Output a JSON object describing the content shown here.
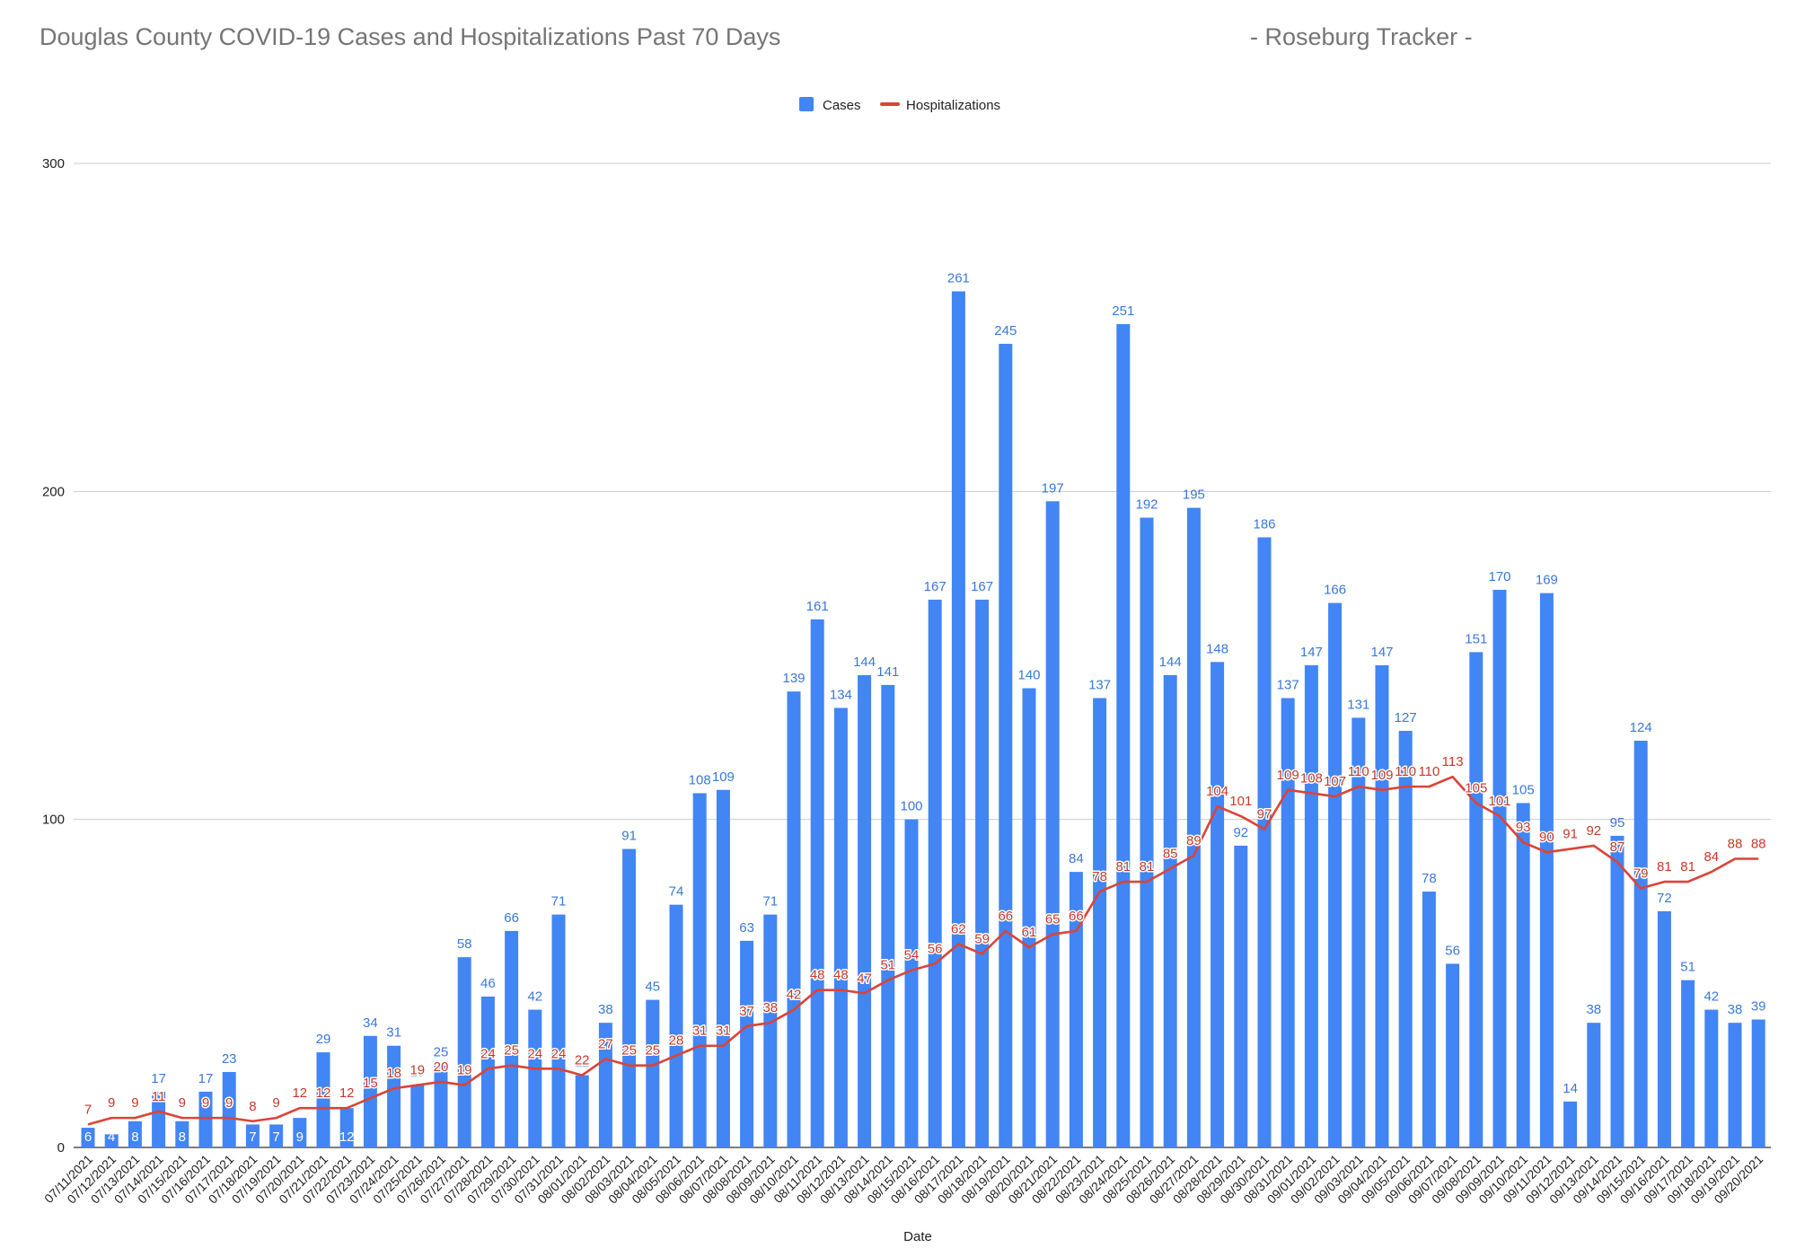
{
  "title": "Douglas County COVID-19 Cases and Hospitalizations Past 70 Days",
  "subtitle": "- Roseburg Tracker -",
  "chart_data": {
    "type": "bar",
    "title": "Douglas County COVID-19 Cases and Hospitalizations Past 70 Days",
    "subtitle": "- Roseburg Tracker -",
    "xlabel": "Date",
    "ylabel": "",
    "ylim": [
      0,
      300
    ],
    "yticks": [
      0,
      100,
      200,
      300
    ],
    "grid": true,
    "legend_position": "top-center",
    "categories": [
      "07/11/2021",
      "07/12/2021",
      "07/13/2021",
      "07/14/2021",
      "07/15/2021",
      "07/16/2021",
      "07/17/2021",
      "07/18/2021",
      "07/19/2021",
      "07/20/2021",
      "07/21/2021",
      "07/22/2021",
      "07/23/2021",
      "07/24/2021",
      "07/25/2021",
      "07/26/2021",
      "07/27/2021",
      "07/28/2021",
      "07/29/2021",
      "07/30/2021",
      "07/31/2021",
      "08/01/2021",
      "08/02/2021",
      "08/03/2021",
      "08/04/2021",
      "08/05/2021",
      "08/06/2021",
      "08/07/2021",
      "08/08/2021",
      "08/09/2021",
      "08/10/2021",
      "08/11/2021",
      "08/12/2021",
      "08/13/2021",
      "08/14/2021",
      "08/15/2021",
      "08/16/2021",
      "08/17/2021",
      "08/18/2021",
      "08/19/2021",
      "08/20/2021",
      "08/21/2021",
      "08/22/2021",
      "08/23/2021",
      "08/24/2021",
      "08/25/2021",
      "08/26/2021",
      "08/27/2021",
      "08/28/2021",
      "08/29/2021",
      "08/30/2021",
      "08/31/2021",
      "09/01/2021",
      "09/02/2021",
      "09/03/2021",
      "09/04/2021",
      "09/05/2021",
      "09/06/2021",
      "09/07/2021",
      "09/08/2021",
      "09/09/2021",
      "09/10/2021",
      "09/11/2021",
      "09/12/2021",
      "09/13/2021",
      "09/14/2021",
      "09/15/2021",
      "09/16/2021",
      "09/17/2021",
      "09/18/2021",
      "09/19/2021",
      "09/20/2021"
    ],
    "series": [
      {
        "name": "Cases",
        "type": "bar",
        "color": "#4285f4",
        "label_color": "#3b78d8",
        "values": [
          6,
          4,
          8,
          17,
          8,
          17,
          23,
          7,
          7,
          9,
          29,
          12,
          34,
          31,
          19,
          25,
          58,
          46,
          66,
          42,
          71,
          22,
          38,
          91,
          45,
          74,
          108,
          109,
          63,
          71,
          139,
          161,
          134,
          144,
          141,
          100,
          167,
          261,
          167,
          245,
          140,
          197,
          84,
          137,
          251,
          192,
          144,
          195,
          148,
          92,
          186,
          137,
          147,
          166,
          131,
          147,
          127,
          78,
          56,
          151,
          170,
          105,
          169,
          14,
          38,
          95,
          124,
          72,
          51,
          42,
          38,
          39
        ]
      },
      {
        "name": "Hospitalizations",
        "type": "line",
        "color": "#db4437",
        "label_color": "#c53929",
        "values": [
          7,
          9,
          9,
          11,
          9,
          9,
          9,
          8,
          9,
          12,
          12,
          12,
          15,
          18,
          19,
          20,
          19,
          24,
          25,
          24,
          24,
          22,
          27,
          25,
          25,
          28,
          31,
          31,
          37,
          38,
          42,
          48,
          48,
          47,
          51,
          54,
          56,
          62,
          59,
          66,
          61,
          65,
          66,
          78,
          81,
          81,
          85,
          89,
          104,
          101,
          97,
          109,
          108,
          107,
          110,
          109,
          110,
          110,
          113,
          105,
          101,
          93,
          90,
          91,
          92,
          87,
          79,
          81,
          81,
          84,
          88,
          88
        ]
      }
    ]
  }
}
